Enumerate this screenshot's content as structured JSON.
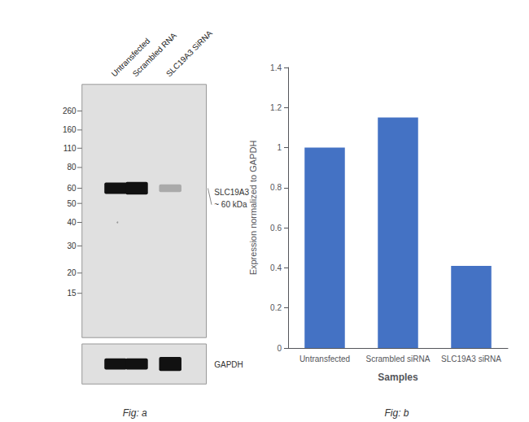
{
  "chart_data": [
    {
      "type": "blot",
      "categories": [
        "Untransfected",
        "Scrambled RNA",
        "SLC19A3 SiRNA"
      ],
      "annotations": [
        "260",
        "160",
        "110",
        "80",
        "60",
        "50",
        "40",
        "30",
        "20",
        "15",
        "SLC19A3",
        "~ 60 kDa",
        "GAPDH",
        "Fig: a"
      ]
    },
    {
      "type": "bar",
      "categories": [
        "Untransfected",
        "Scrambled siRNA",
        "SLC19A3 siRNA"
      ],
      "values": [
        1.0,
        1.15,
        0.41
      ],
      "color": "#4472c4",
      "xlabel": "Samples",
      "ylabel": "Expression normalized to GAPDH",
      "ylim": [
        0,
        1.4
      ],
      "yticks": [
        0,
        0.2,
        0.4,
        0.6,
        0.8,
        1.0,
        1.2,
        1.4
      ],
      "grid": false,
      "annotations": [
        "Fig: b"
      ]
    }
  ]
}
